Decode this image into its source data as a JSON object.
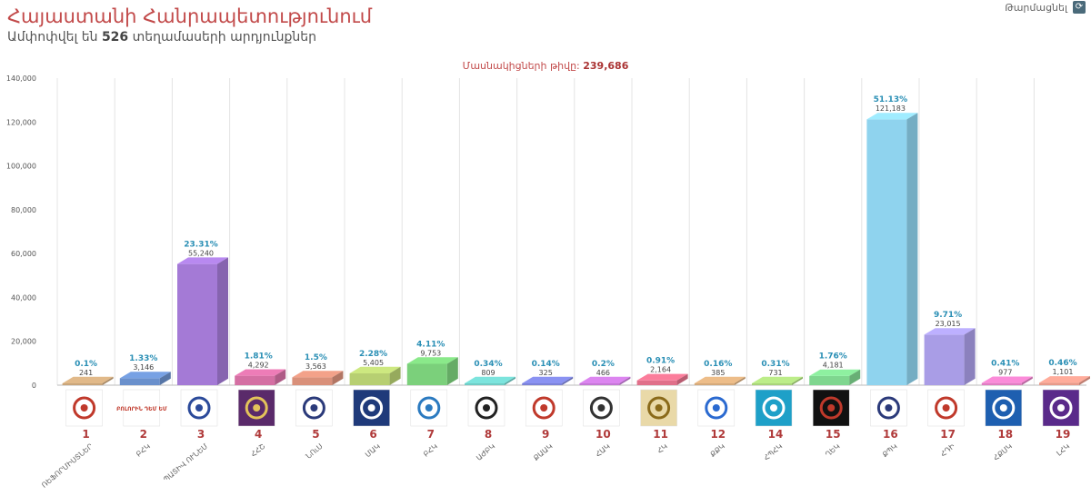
{
  "header": {
    "title": "Հայաստանի Հանրապետությունում",
    "subtitle_prefix": "Ամփոփվել են",
    "precincts": "526",
    "subtitle_suffix": "տեղամասերի արդյունքներ",
    "refresh_label": "Թարմացնել",
    "refresh_icon": "refresh-icon"
  },
  "participants": {
    "label": "Մասնակիցների թիվը:",
    "value": "239,686"
  },
  "chart_data": {
    "type": "bar",
    "title": "",
    "xlabel": "",
    "ylabel": "",
    "ylim": [
      0,
      140000
    ],
    "yticks": [
      0,
      20000,
      40000,
      60000,
      80000,
      100000,
      120000,
      140000
    ],
    "ytick_labels": [
      "0",
      "20,000",
      "40,000",
      "60,000",
      "80,000",
      "100,000",
      "120,000",
      "140,000"
    ],
    "grid": "vertical-columns",
    "legend": "none",
    "bars": [
      {
        "num": "1",
        "abbr": "ՌԵՖՈՐՄԻՍՏՆԵՐ",
        "percent": "0.1%",
        "value_label": "241",
        "value": 241,
        "color": "#c9a57a"
      },
      {
        "num": "2",
        "abbr": "ԲՀԿ",
        "percent": "1.33%",
        "value_label": "3,146",
        "value": 3146,
        "color": "#6a90cc"
      },
      {
        "num": "3",
        "abbr": "ՊԱՏԻՎ ՈՒՆԵՄ",
        "percent": "23.31%",
        "value_label": "55,240",
        "value": 55240,
        "color": "#a47ad6"
      },
      {
        "num": "4",
        "abbr": "ՀՀՇ",
        "percent": "1.81%",
        "value_label": "4,292",
        "value": 4292,
        "color": "#d46fa3"
      },
      {
        "num": "5",
        "abbr": "ՆՈւՍ",
        "percent": "1.5%",
        "value_label": "3,563",
        "value": 3563,
        "color": "#d9907a"
      },
      {
        "num": "6",
        "abbr": "ՄԱԿ",
        "percent": "2.28%",
        "value_label": "5,405",
        "value": 5405,
        "color": "#b7cf72"
      },
      {
        "num": "7",
        "abbr": "ԲՀԿ",
        "percent": "4.11%",
        "value_label": "9,753",
        "value": 9753,
        "color": "#7bd07b"
      },
      {
        "num": "8",
        "abbr": "ԱԺԲԿ",
        "percent": "0.34%",
        "value_label": "809",
        "value": 809,
        "color": "#6fccc5"
      },
      {
        "num": "9",
        "abbr": "ՔԱԱԿ",
        "percent": "0.14%",
        "value_label": "325",
        "value": 325,
        "color": "#7b82d8"
      },
      {
        "num": "10",
        "abbr": "ՀԱԿ",
        "percent": "0.2%",
        "value_label": "466",
        "value": 466,
        "color": "#c477d6"
      },
      {
        "num": "11",
        "abbr": "ՀԿ",
        "percent": "0.91%",
        "value_label": "2,164",
        "value": 2164,
        "color": "#e0708a"
      },
      {
        "num": "12",
        "abbr": "ՔՔԿ",
        "percent": "0.16%",
        "value_label": "385",
        "value": 385,
        "color": "#d4a97a"
      },
      {
        "num": "14",
        "abbr": "ՀՊՀԿ",
        "percent": "0.31%",
        "value_label": "731",
        "value": 731,
        "color": "#a8d47a"
      },
      {
        "num": "15",
        "abbr": "ՂԵԿ",
        "percent": "1.76%",
        "value_label": "4,181",
        "value": 4181,
        "color": "#7fd68f"
      },
      {
        "num": "16",
        "abbr": "ՔՊԿ",
        "percent": "51.13%",
        "value_label": "121,183",
        "value": 121183,
        "color": "#8fd3ee"
      },
      {
        "num": "17",
        "abbr": "ՀԴԻ",
        "percent": "9.71%",
        "value_label": "23,015",
        "value": 23015,
        "color": "#a99de6"
      },
      {
        "num": "18",
        "abbr": "ՀՔՄԿ",
        "percent": "0.41%",
        "value_label": "977",
        "value": 977,
        "color": "#e07cc2"
      },
      {
        "num": "19",
        "abbr": "ԼՀԿ",
        "percent": "0.46%",
        "value_label": "1,101",
        "value": 1101,
        "color": "#e89a8a"
      }
    ]
  },
  "logos": [
    {
      "icon": "hand-logo-icon",
      "bg": "#ffffff",
      "fg": "#c0392b",
      "text": ""
    },
    {
      "icon": "bolorin-logo-icon",
      "bg": "#ffffff",
      "fg": "#c0392b",
      "text": "ԲՈԼՈՐԻՆ ԴԵՄ ԵՄ"
    },
    {
      "icon": "pativ-logo-icon",
      "bg": "#ffffff",
      "fg": "#2b4a9a",
      "text": ""
    },
    {
      "icon": "lion-emblem-icon",
      "bg": "#5a2a6a",
      "fg": "#e3c35a",
      "text": ""
    },
    {
      "icon": "blocks-logo-icon",
      "bg": "#ffffff",
      "fg": "#2b3a7a",
      "text": ""
    },
    {
      "icon": "eagle-logo-icon",
      "bg": "#1f3a7a",
      "fg": "#ffffff",
      "text": ""
    },
    {
      "icon": "bird-logo-icon",
      "bg": "#ffffff",
      "fg": "#2b7ac0",
      "text": ""
    },
    {
      "icon": "archer-logo-icon",
      "bg": "#ffffff",
      "fg": "#222222",
      "text": ""
    },
    {
      "icon": "shield-logo-icon",
      "bg": "#ffffff",
      "fg": "#c0392b",
      "text": ""
    },
    {
      "icon": "spiral-logo-icon",
      "bg": "#ffffff",
      "fg": "#333333",
      "text": ""
    },
    {
      "icon": "ornament-logo-icon",
      "bg": "#e9d9a8",
      "fg": "#8a6a1a",
      "text": ""
    },
    {
      "icon": "wave-logo-icon",
      "bg": "#ffffff",
      "fg": "#2b6ad0",
      "text": ""
    },
    {
      "icon": "chevron-logo-icon",
      "bg": "#1ea0c8",
      "fg": "#ffffff",
      "text": ""
    },
    {
      "icon": "crest-logo-icon",
      "bg": "#111111",
      "fg": "#c0392b",
      "text": ""
    },
    {
      "icon": "diamond-logo-icon",
      "bg": "#ffffff",
      "fg": "#2b3a7a",
      "text": ""
    },
    {
      "icon": "arrows-logo-icon",
      "bg": "#ffffff",
      "fg": "#c0392b",
      "text": ""
    },
    {
      "icon": "sigma-logo-icon",
      "bg": "#1e5fb0",
      "fg": "#ffffff",
      "text": ""
    },
    {
      "icon": "square-logo-icon",
      "bg": "#5a2a8a",
      "fg": "#ffffff",
      "text": ""
    }
  ]
}
